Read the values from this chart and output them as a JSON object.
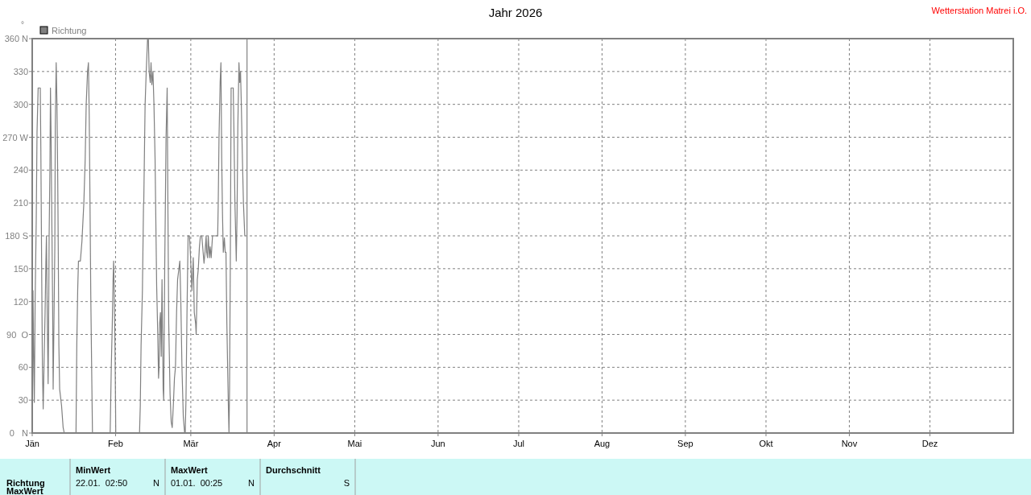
{
  "chart_data": {
    "type": "line",
    "title": "Jahr 2026",
    "ylabel": "°",
    "legend": "top left",
    "grid": true,
    "marker": "none",
    "line_style": "solid",
    "xlim": [
      "2026-01-01",
      "2027-01-01"
    ],
    "xticks": [
      {
        "value": "2026-01-01",
        "label": "Jän"
      },
      {
        "value": "2026-02-01",
        "label": "Feb"
      },
      {
        "value": "2026-03-01",
        "label": "Mär"
      },
      {
        "value": "2026-04-01",
        "label": "Apr"
      },
      {
        "value": "2026-05-01",
        "label": "Mai"
      },
      {
        "value": "2026-06-01",
        "label": "Jun"
      },
      {
        "value": "2026-07-01",
        "label": "Jul"
      },
      {
        "value": "2026-08-01",
        "label": "Aug"
      },
      {
        "value": "2026-09-01",
        "label": "Sep"
      },
      {
        "value": "2026-10-01",
        "label": "Okt"
      },
      {
        "value": "2026-11-01",
        "label": "Nov"
      },
      {
        "value": "2026-12-01",
        "label": "Dez"
      }
    ],
    "ylim": [
      0,
      360
    ],
    "yticks": [
      {
        "value": 0,
        "label": "0   N"
      },
      30,
      60,
      {
        "value": 90,
        "label": "90  O"
      },
      120,
      150,
      {
        "value": 180,
        "label": "180 S"
      },
      210,
      240,
      {
        "value": 270,
        "label": "270 W"
      },
      300,
      330,
      {
        "value": 360,
        "label": "360 N"
      }
    ],
    "ref_lines": [
      {
        "axis": "x",
        "value": "2026-03-21T22:00",
        "color": "#808080"
      }
    ],
    "annotations": [
      "Wetterstation Matrei i.O.",
      "Richtung",
      "MinWert",
      "22.01.  02:50",
      "N",
      "MaxWert",
      "01.01.  00:25",
      "N",
      "Durchschnitt",
      "S",
      "MaxWert"
    ],
    "series": [
      {
        "name": "Richtung",
        "color": "#808080",
        "x": [
          "2026-01-01T02:00",
          "2026-01-01T07:00",
          "2026-01-01T12:00",
          "2026-01-01T19:00",
          "2026-01-02T02:00",
          "2026-01-02T12:00",
          "2026-01-02T19:00",
          "2026-01-03T05:00",
          "2026-01-04T00:00",
          "2026-01-04T05:00",
          "2026-01-04T12:00",
          "2026-01-04T19:00",
          "2026-01-05T02:00",
          "2026-01-05T10:00",
          "2026-01-05T19:00",
          "2026-01-06T02:00",
          "2026-01-06T07:00",
          "2026-01-06T14:00",
          "2026-01-06T22:00",
          "2026-01-07T02:00",
          "2026-01-07T07:00",
          "2026-01-07T14:00",
          "2026-01-07T19:00",
          "2026-01-08T00:00",
          "2026-01-08T07:00",
          "2026-01-08T14:00",
          "2026-01-08T19:00",
          "2026-01-09T02:00",
          "2026-01-09T10:00",
          "2026-01-09T14:00",
          "2026-01-09T22:00",
          "2026-01-10T05:00",
          "2026-01-10T12:00",
          "2026-01-10T17:00",
          "2026-01-10T22:00",
          "2026-01-11T05:00",
          "2026-01-11T22:00",
          "2026-01-12T12:00",
          "2026-01-12T22:00",
          "2026-01-17T07:00",
          "2026-01-17T14:00",
          "2026-01-17T22:00",
          "2026-01-18T05:00",
          "2026-01-18T22:00",
          "2026-01-19T12:00",
          "2026-01-20T05:00",
          "2026-01-20T17:00",
          "2026-01-21T02:00",
          "2026-01-21T14:00",
          "2026-01-21T22:00",
          "2026-01-22T05:00",
          "2026-01-22T12:00",
          "2026-01-22T19:00",
          "2026-01-23T05:00",
          "2026-01-23T10:00",
          "2026-01-30T00:00",
          "2026-01-30T10:00",
          "2026-01-30T19:00",
          "2026-01-31T02:00",
          "2026-01-31T07:00",
          "2026-01-31T12:00",
          "2026-01-31T19:00",
          "2026-02-01T00:00",
          "2026-02-01T02:00",
          "2026-02-09T22:00",
          "2026-02-10T05:00",
          "2026-02-10T12:00",
          "2026-02-11T00:00",
          "2026-02-11T10:00",
          "2026-02-11T12:00",
          "2026-02-12T00:00",
          "2026-02-12T10:00",
          "2026-02-12T22:00",
          "2026-02-13T05:00",
          "2026-02-13T12:00",
          "2026-02-13T22:00",
          "2026-02-14T05:00",
          "2026-02-14T12:00",
          "2026-02-14T22:00",
          "2026-02-15T07:00",
          "2026-02-15T17:00",
          "2026-02-16T07:00",
          "2026-02-16T17:00",
          "2026-02-17T00:00",
          "2026-02-17T05:00",
          "2026-02-17T10:00",
          "2026-02-17T17:00",
          "2026-02-18T00:00",
          "2026-02-18T07:00",
          "2026-02-18T17:00",
          "2026-02-18T22:00",
          "2026-02-19T07:00",
          "2026-02-19T19:00",
          "2026-02-20T05:00",
          "2026-02-20T12:00",
          "2026-02-20T19:00",
          "2026-02-21T07:00",
          "2026-02-21T17:00",
          "2026-02-22T02:00",
          "2026-02-22T12:00",
          "2026-02-22T22:00",
          "2026-02-23T07:00",
          "2026-02-23T17:00",
          "2026-02-24T02:00",
          "2026-02-24T14:00",
          "2026-02-24T22:00",
          "2026-02-25T07:00",
          "2026-02-25T17:00",
          "2026-02-26T05:00",
          "2026-02-26T17:00",
          "2026-02-26T22:00",
          "2026-02-27T05:00",
          "2026-02-27T14:00",
          "2026-02-28T00:00",
          "2026-02-28T12:00",
          "2026-02-28T22:00",
          "2026-03-01T10:00",
          "2026-03-01T22:00",
          "2026-03-02T07:00",
          "2026-03-02T19:00",
          "2026-03-03T00:00",
          "2026-03-03T10:00",
          "2026-03-03T19:00",
          "2026-03-04T05:00",
          "2026-03-04T14:00",
          "2026-03-05T02:00",
          "2026-03-05T14:00",
          "2026-03-05T22:00",
          "2026-03-06T07:00",
          "2026-03-06T17:00",
          "2026-03-06T22:00",
          "2026-03-07T05:00",
          "2026-03-07T12:00",
          "2026-03-07T22:00",
          "2026-03-08T05:00",
          "2026-03-08T14:00",
          "2026-03-09T02:00",
          "2026-03-11T00:00",
          "2026-03-11T05:00",
          "2026-03-11T12:00",
          "2026-03-11T22:00",
          "2026-03-12T05:00",
          "2026-03-12T12:00",
          "2026-03-12T19:00",
          "2026-03-13T02:00",
          "2026-03-13T12:00",
          "2026-03-13T19:00",
          "2026-03-14T02:00",
          "2026-03-14T10:00",
          "2026-03-14T17:00",
          "2026-03-15T00:00",
          "2026-03-15T05:00",
          "2026-03-15T10:00",
          "2026-03-15T17:00",
          "2026-03-16T00:00",
          "2026-03-16T19:00",
          "2026-03-17T02:00",
          "2026-03-17T10:00",
          "2026-03-17T17:00",
          "2026-03-17T22:00",
          "2026-03-18T05:00",
          "2026-03-18T12:00",
          "2026-03-18T22:00",
          "2026-03-19T05:00",
          "2026-03-19T12:00",
          "2026-03-19T19:00",
          "2026-03-20T05:00",
          "2026-03-20T14:00",
          "2026-03-20T22:00",
          "2026-03-21T02:00",
          "2026-03-21T10:00"
        ],
        "values": [
          0,
          130,
          80,
          28,
          120,
          195,
          275,
          315,
          315,
          260,
          155,
          60,
          22,
          65,
          110,
          155,
          180,
          110,
          45,
          90,
          180,
          240,
          315,
          275,
          195,
          120,
          40,
          100,
          170,
          280,
          338,
          300,
          230,
          160,
          80,
          40,
          25,
          5,
          0,
          0,
          80,
          130,
          157,
          157,
          175,
          210,
          250,
          300,
          330,
          338,
          290,
          210,
          125,
          40,
          0,
          0,
          60,
          100,
          140,
          157,
          130,
          80,
          27,
          0,
          0,
          25,
          80,
          130,
          210,
          210,
          300,
          330,
          360,
          360,
          330,
          320,
          338,
          318,
          330,
          300,
          250,
          135,
          90,
          50,
          60,
          100,
          110,
          70,
          140,
          40,
          30,
          150,
          270,
          315,
          200,
          100,
          35,
          10,
          5,
          25,
          50,
          60,
          110,
          140,
          150,
          157,
          120,
          60,
          15,
          0,
          0,
          30,
          110,
          180,
          180,
          160,
          130,
          160,
          110,
          100,
          90,
          140,
          150,
          170,
          180,
          180,
          165,
          155,
          165,
          180,
          165,
          160,
          180,
          160,
          170,
          160,
          180,
          180,
          210,
          270,
          320,
          338,
          250,
          200,
          165,
          178,
          165,
          165,
          100,
          60,
          22,
          0,
          40,
          157,
          315,
          315,
          270,
          210,
          180,
          157,
          200,
          280,
          338,
          320,
          330,
          300,
          250,
          210,
          190,
          180,
          180
        ]
      }
    ]
  }
}
